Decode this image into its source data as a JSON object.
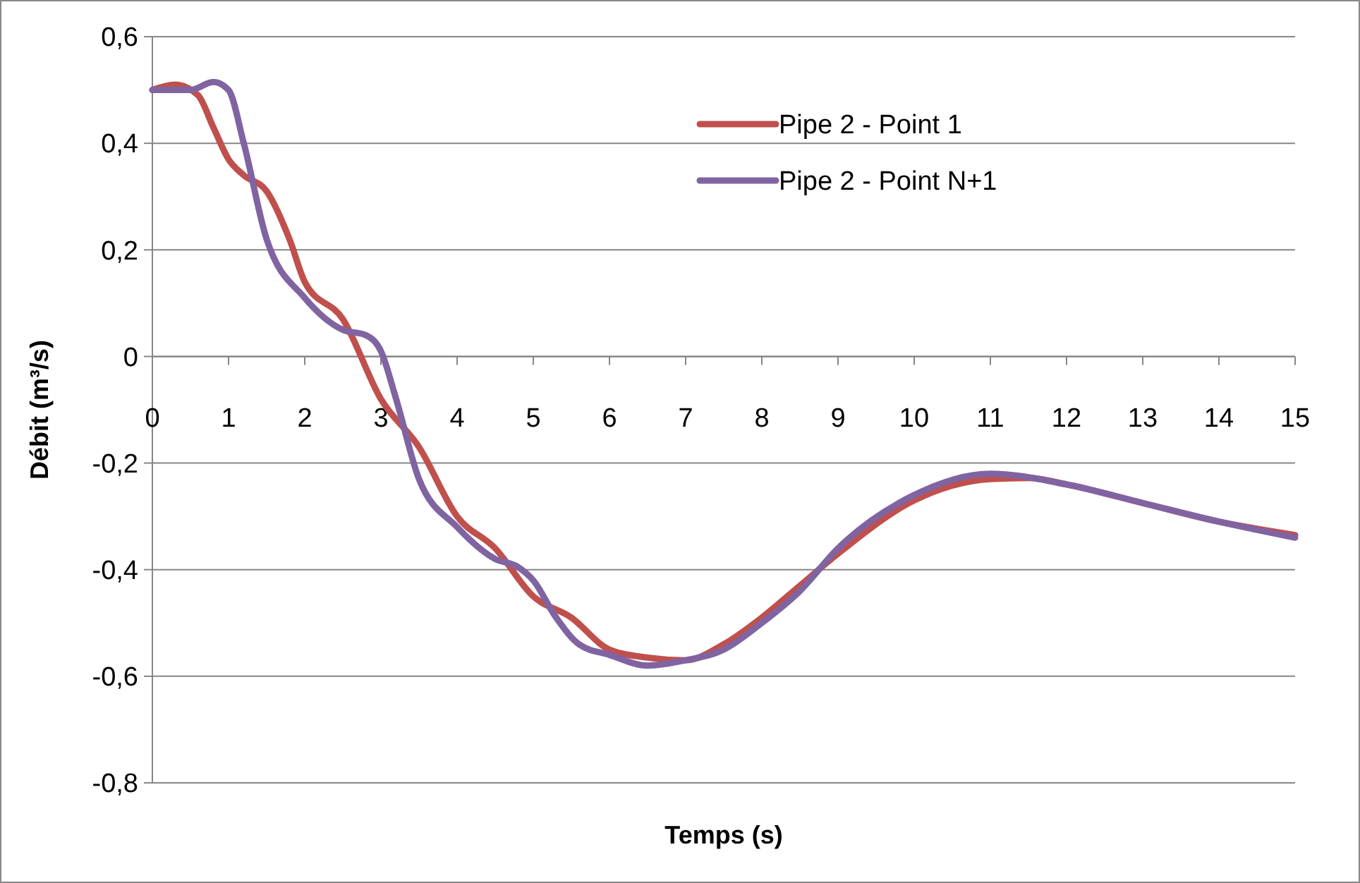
{
  "chart_data": {
    "type": "line",
    "xlabel": "Temps (s)",
    "ylabel": "Débit (m³/s)",
    "xlim": [
      0,
      15
    ],
    "xticks": [
      0,
      1,
      2,
      3,
      4,
      5,
      6,
      7,
      8,
      9,
      10,
      11,
      12,
      13,
      14,
      15
    ],
    "ylim": [
      -0.8,
      0.6
    ],
    "yticks": [
      {
        "value": -0.8,
        "label": "-0,8"
      },
      {
        "value": -0.6,
        "label": "-0,6"
      },
      {
        "value": -0.4,
        "label": "-0,4"
      },
      {
        "value": -0.2,
        "label": "-0,2"
      },
      {
        "value": 0,
        "label": "0"
      },
      {
        "value": 0.2,
        "label": "0,2"
      },
      {
        "value": 0.4,
        "label": "0,4"
      },
      {
        "value": 0.6,
        "label": "0,6"
      }
    ],
    "grid": "y",
    "legend": "top right",
    "marker": "none",
    "line_style": "solid",
    "series": [
      {
        "name": "Pipe 2 - Point 1",
        "color": "#c0504d",
        "x": [
          0,
          0.3,
          0.6,
          0.8,
          1,
          1.2,
          1.5,
          1.8,
          2,
          2.5,
          3,
          3.5,
          4,
          4.5,
          5,
          5.5,
          6,
          6.5,
          7,
          7.5,
          8,
          8.5,
          9,
          10,
          11,
          11.5,
          12,
          13,
          14,
          15
        ],
        "values": [
          0.5,
          0.51,
          0.49,
          0.43,
          0.37,
          0.34,
          0.31,
          0.22,
          0.14,
          0.07,
          -0.08,
          -0.17,
          -0.3,
          -0.36,
          -0.45,
          -0.49,
          -0.55,
          -0.565,
          -0.57,
          -0.54,
          -0.49,
          -0.43,
          -0.37,
          -0.27,
          -0.23,
          -0.228,
          -0.24,
          -0.275,
          -0.31,
          -0.335
        ]
      },
      {
        "name": "Pipe 2 - Point N+1",
        "color": "#8064a2",
        "x": [
          0,
          0.5,
          0.8,
          1,
          1.2,
          1.5,
          2,
          2.5,
          2.8,
          3,
          3.2,
          3.5,
          4,
          4.5,
          4.8,
          5,
          5.3,
          5.6,
          6,
          6.5,
          7,
          7.5,
          8,
          8.5,
          9,
          10,
          11,
          12,
          13,
          14,
          15
        ],
        "values": [
          0.5,
          0.5,
          0.515,
          0.5,
          0.4,
          0.22,
          0.11,
          0.05,
          0.04,
          0.01,
          -0.08,
          -0.23,
          -0.32,
          -0.38,
          -0.395,
          -0.42,
          -0.49,
          -0.54,
          -0.56,
          -0.58,
          -0.57,
          -0.55,
          -0.5,
          -0.44,
          -0.36,
          -0.26,
          -0.22,
          -0.24,
          -0.275,
          -0.31,
          -0.34
        ]
      }
    ]
  }
}
